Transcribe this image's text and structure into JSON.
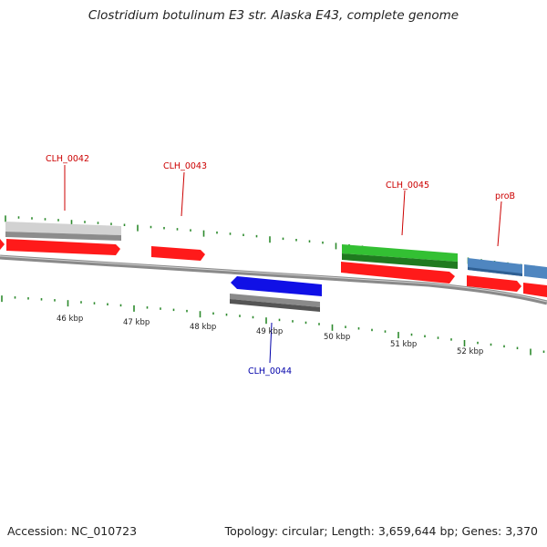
{
  "title": "Clostridium botulinum E3 str. Alaska E43, complete genome",
  "footer": {
    "accession": "Accession: NC_010723",
    "summary": "Topology: circular; Length: 3,659,644 bp; Genes: 3,370"
  },
  "colors": {
    "cds": "#ff1a1a",
    "grey_gene": "#c8c8c8",
    "green_gene": "#2fb52f",
    "blue_gene": "#1010e0",
    "steelblue_gene": "#4f86c0",
    "tick": "#2d8a2d",
    "label_forward": "#cc0000",
    "label_reverse": "#0000aa"
  },
  "kbp_labels": [
    "46 kbp",
    "47 kbp",
    "48 kbp",
    "49 kbp",
    "50 kbp",
    "51 kbp",
    "52 kbp"
  ],
  "gene_labels": [
    {
      "name": "CLH_0042",
      "strand": "forward"
    },
    {
      "name": "CLH_0043",
      "strand": "forward"
    },
    {
      "name": "CLH_0044",
      "strand": "reverse"
    },
    {
      "name": "CLH_0045",
      "strand": "forward"
    },
    {
      "name": "proB",
      "strand": "forward"
    }
  ]
}
